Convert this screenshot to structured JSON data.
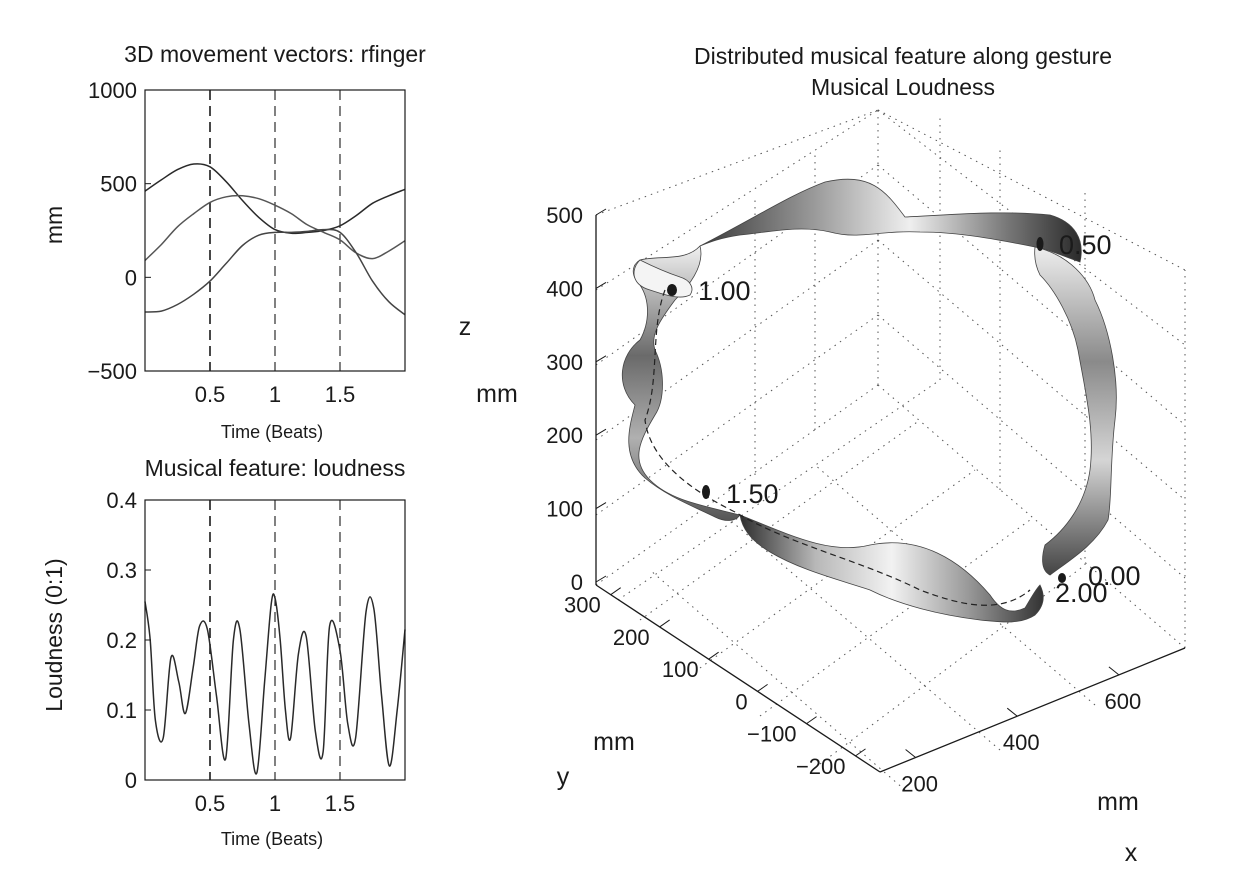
{
  "chart_data": [
    {
      "type": "line",
      "title": "3D movement vectors: rfinger",
      "xlabel": "Time (Beats)",
      "ylabel": "mm",
      "xlim": [
        0,
        2
      ],
      "ylim": [
        -500,
        1000
      ],
      "xticks": [
        "0.5",
        "1",
        "1.5"
      ],
      "yticks": [
        "1000",
        "500",
        "0",
        "−500"
      ],
      "xtick_values": [
        0.5,
        1,
        1.5
      ],
      "ytick_values": [
        1000,
        500,
        0,
        -500
      ],
      "vlines": [
        0.5,
        1,
        1.5
      ],
      "grid": false,
      "series": [
        {
          "x": [
            0,
            0.125,
            0.25,
            0.375,
            0.5,
            0.625,
            0.75,
            0.875,
            1,
            1.125,
            1.25,
            1.375,
            1.5,
            1.625,
            1.75,
            1.875,
            2
          ],
          "values": [
            460,
            520,
            575,
            605,
            590,
            510,
            410,
            320,
            255,
            235,
            240,
            250,
            275,
            330,
            395,
            435,
            470
          ]
        },
        {
          "x": [
            0,
            0.125,
            0.25,
            0.375,
            0.5,
            0.625,
            0.75,
            0.875,
            1,
            1.125,
            1.25,
            1.375,
            1.5,
            1.625,
            1.75,
            1.875,
            2
          ],
          "values": [
            90,
            175,
            270,
            340,
            400,
            430,
            435,
            420,
            385,
            340,
            280,
            240,
            200,
            130,
            100,
            140,
            195
          ]
        },
        {
          "x": [
            0,
            0.125,
            0.25,
            0.375,
            0.5,
            0.625,
            0.75,
            0.875,
            1,
            1.125,
            1.25,
            1.375,
            1.5,
            1.625,
            1.75,
            1.875,
            2
          ],
          "values": [
            -185,
            -180,
            -145,
            -90,
            -20,
            75,
            170,
            225,
            240,
            240,
            245,
            255,
            240,
            130,
            -20,
            -130,
            -200
          ]
        }
      ]
    },
    {
      "type": "line",
      "title": "Musical feature: loudness",
      "xlabel": "Time (Beats)",
      "ylabel": "Loudness (0:1)",
      "xlim": [
        0,
        2
      ],
      "ylim": [
        0,
        0.4
      ],
      "xticks": [
        "0.5",
        "1",
        "1.5"
      ],
      "yticks": [
        "0.4",
        "0.3",
        "0.2",
        "0.1",
        "0"
      ],
      "xtick_values": [
        0.5,
        1,
        1.5
      ],
      "ytick_values": [
        0.4,
        0.3,
        0.2,
        0.1,
        0
      ],
      "vlines": [
        0.5,
        1,
        1.5
      ],
      "grid": false,
      "series": [
        {
          "x": [
            0,
            0.04,
            0.08,
            0.14,
            0.2,
            0.26,
            0.31,
            0.37,
            0.42,
            0.48,
            0.55,
            0.62,
            0.68,
            0.73,
            0.8,
            0.86,
            0.92,
            0.97,
            1.0,
            1.04,
            1.08,
            1.12,
            1.18,
            1.24,
            1.31,
            1.37,
            1.42,
            1.5,
            1.56,
            1.62,
            1.7,
            1.76,
            1.82,
            1.88,
            1.94,
            2.0
          ],
          "values": [
            0.255,
            0.2,
            0.085,
            0.06,
            0.175,
            0.14,
            0.095,
            0.16,
            0.22,
            0.215,
            0.12,
            0.03,
            0.2,
            0.215,
            0.08,
            0.01,
            0.14,
            0.25,
            0.26,
            0.2,
            0.1,
            0.06,
            0.18,
            0.205,
            0.07,
            0.04,
            0.22,
            0.185,
            0.08,
            0.06,
            0.24,
            0.245,
            0.12,
            0.02,
            0.1,
            0.215
          ]
        }
      ]
    },
    {
      "type": "surface3d",
      "title": "Distributed musical feature along gesture",
      "subtitle": "Musical Loudness",
      "xlabel": "x",
      "ylabel": "y",
      "zlabel": "z",
      "x_unit": "mm",
      "y_unit": "mm",
      "z_unit": "mm",
      "xticks": [
        "200",
        "400",
        "600"
      ],
      "yticks": [
        "300",
        "200",
        "100",
        "0",
        "−100",
        "−200"
      ],
      "zticks": [
        "500",
        "400",
        "300",
        "200",
        "100",
        "0"
      ],
      "grid": true,
      "colormap": "gray",
      "annotations": [
        {
          "text": "0.50",
          "beat": 0.5
        },
        {
          "text": "1.00",
          "beat": 1.0
        },
        {
          "text": "1.50",
          "beat": 1.5
        },
        {
          "text": "0.00",
          "beat": 0.0
        },
        {
          "text": "2.00",
          "beat": 2.0
        }
      ]
    }
  ]
}
